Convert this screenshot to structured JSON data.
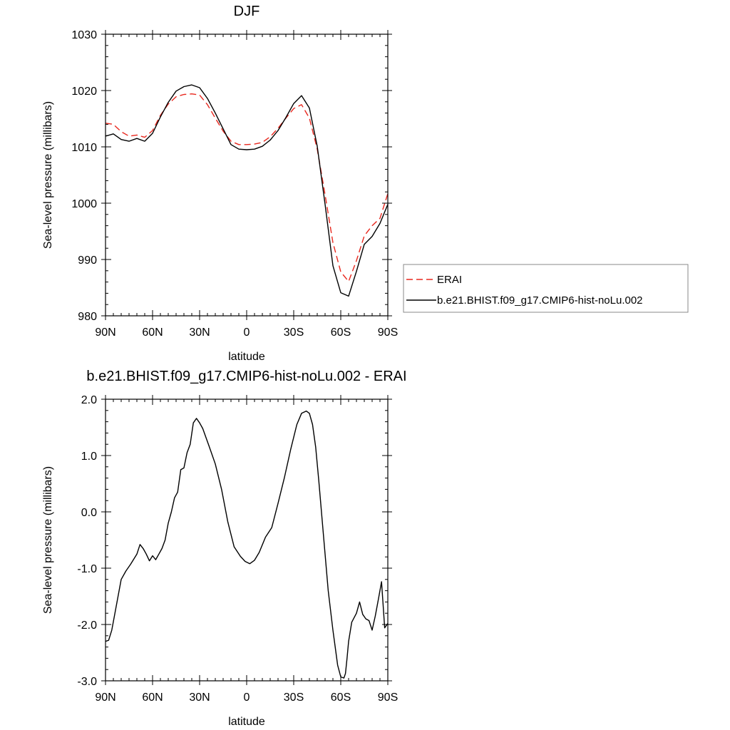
{
  "chart_data": [
    {
      "type": "line",
      "title": "DJF",
      "xlabel": "latitude",
      "ylabel": "Sea-level pressure (millibars)",
      "xlim": [
        90,
        -90
      ],
      "ylim": [
        980,
        1030
      ],
      "xticks": [
        90,
        60,
        30,
        0,
        -30,
        -60,
        -90
      ],
      "xtick_labels": [
        "90N",
        "60N",
        "30N",
        "0",
        "30S",
        "60S",
        "90S"
      ],
      "yticks": [
        980,
        990,
        1000,
        1010,
        1020,
        1030
      ],
      "ytick_labels": [
        "980",
        "990",
        "1000",
        "1010",
        "1020",
        "1030"
      ],
      "legend_position": "right",
      "series": [
        {
          "name": "ERAI",
          "color": "#e8281e",
          "dash": "dashed",
          "x": [
            90,
            85,
            80,
            75,
            70,
            65,
            60,
            55,
            50,
            45,
            40,
            35,
            30,
            25,
            20,
            15,
            10,
            5,
            0,
            -5,
            -10,
            -15,
            -20,
            -25,
            -30,
            -35,
            -40,
            -45,
            -50,
            -55,
            -60,
            -65,
            -70,
            -75,
            -80,
            -85,
            -90
          ],
          "values": [
            1014.2,
            1014.0,
            1012.7,
            1011.9,
            1012.1,
            1011.7,
            1012.9,
            1015.6,
            1017.6,
            1018.9,
            1019.3,
            1019.4,
            1019.2,
            1017.5,
            1015.1,
            1012.8,
            1011.0,
            1010.4,
            1010.4,
            1010.5,
            1010.8,
            1011.8,
            1013.3,
            1015.1,
            1016.8,
            1017.5,
            1015.1,
            1009.6,
            1001.5,
            993.0,
            987.8,
            986.1,
            989.8,
            994.2,
            996.0,
            997.3,
            1001.7
          ]
        },
        {
          "name": "b.e21.BHIST.f09_g17.CMIP6-hist-noLu.002",
          "color": "#000000",
          "dash": "solid",
          "x": [
            90,
            85,
            80,
            75,
            70,
            65,
            60,
            55,
            50,
            45,
            40,
            35,
            30,
            25,
            20,
            15,
            10,
            5,
            0,
            -5,
            -10,
            -15,
            -20,
            -25,
            -30,
            -35,
            -40,
            -45,
            -50,
            -55,
            -60,
            -65,
            -70,
            -75,
            -80,
            -85,
            -90
          ],
          "values": [
            1011.9,
            1012.3,
            1011.3,
            1011.0,
            1011.5,
            1011.0,
            1012.4,
            1015.3,
            1017.9,
            1019.9,
            1020.7,
            1021.0,
            1020.5,
            1018.6,
            1016.0,
            1013.2,
            1010.4,
            1009.6,
            1009.5,
            1009.6,
            1010.1,
            1011.2,
            1012.9,
            1015.2,
            1017.7,
            1019.1,
            1016.9,
            1010.1,
            999.8,
            988.9,
            984.1,
            983.5,
            987.9,
            992.7,
            994.1,
            996.4,
            999.8
          ]
        }
      ]
    },
    {
      "type": "line",
      "title": "b.e21.BHIST.f09_g17.CMIP6-hist-noLu.002 - ERAI",
      "xlabel": "latitude",
      "ylabel": "Sea-level pressure (millibars)",
      "xlim": [
        90,
        -90
      ],
      "ylim": [
        -3.0,
        2.0
      ],
      "xticks": [
        90,
        60,
        30,
        0,
        -30,
        -60,
        -90
      ],
      "xtick_labels": [
        "90N",
        "60N",
        "30N",
        "0",
        "30S",
        "60S",
        "90S"
      ],
      "yticks": [
        -3.0,
        -2.0,
        -1.0,
        0.0,
        1.0,
        2.0
      ],
      "ytick_labels": [
        "-3.0",
        "-2.0",
        "-1.0",
        "0.0",
        "1.0",
        "2.0"
      ],
      "series": [
        {
          "color": "#000000",
          "x": [
            90,
            88,
            86,
            84,
            80,
            77,
            74,
            70,
            68,
            66,
            64,
            62,
            60,
            58,
            56,
            54,
            52,
            50,
            48,
            46,
            44,
            42,
            40,
            38,
            36,
            34,
            32,
            30,
            28,
            24,
            20,
            16,
            12,
            8,
            4,
            1,
            -2,
            -5,
            -8,
            -12,
            -16,
            -20,
            -24,
            -28,
            -32,
            -35,
            -38,
            -40,
            -42,
            -44,
            -46,
            -48,
            -50,
            -52,
            -55,
            -58,
            -60,
            -62,
            -63,
            -64,
            -65,
            -67,
            -70,
            -72,
            -74,
            -76,
            -78,
            -80,
            -82,
            -84,
            -86,
            -88,
            -90
          ],
          "values": [
            -2.3,
            -2.28,
            -2.1,
            -1.8,
            -1.2,
            -1.05,
            -0.93,
            -0.75,
            -0.58,
            -0.65,
            -0.75,
            -0.87,
            -0.78,
            -0.85,
            -0.75,
            -0.65,
            -0.5,
            -0.2,
            0.0,
            0.25,
            0.35,
            0.75,
            0.78,
            1.05,
            1.2,
            1.58,
            1.66,
            1.58,
            1.48,
            1.17,
            0.85,
            0.4,
            -0.18,
            -0.62,
            -0.79,
            -0.88,
            -0.92,
            -0.86,
            -0.72,
            -0.45,
            -0.28,
            0.15,
            0.6,
            1.1,
            1.55,
            1.75,
            1.79,
            1.75,
            1.55,
            1.15,
            0.55,
            -0.1,
            -0.75,
            -1.4,
            -2.1,
            -2.72,
            -2.93,
            -2.95,
            -2.87,
            -2.6,
            -2.3,
            -1.96,
            -1.8,
            -1.6,
            -1.82,
            -1.9,
            -1.93,
            -2.1,
            -1.85,
            -1.55,
            -1.24,
            -2.06,
            -1.98
          ]
        }
      ]
    }
  ]
}
